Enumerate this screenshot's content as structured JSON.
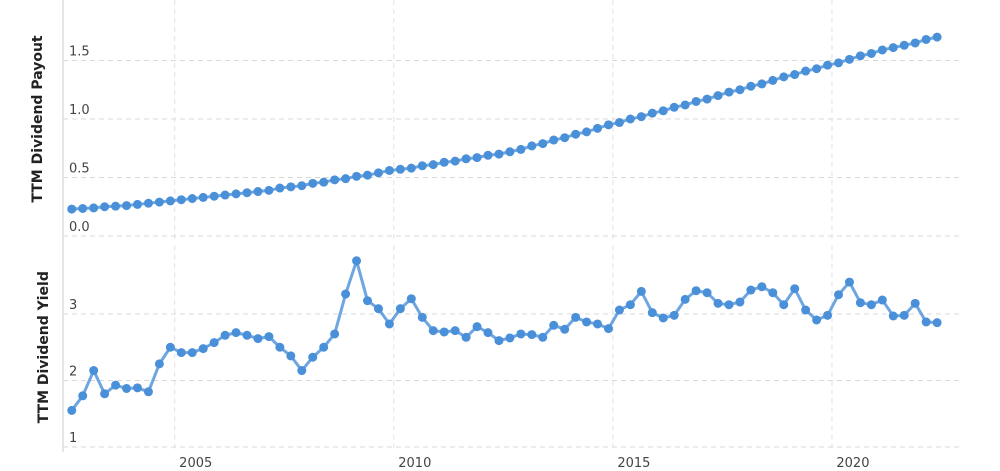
{
  "chart_data": [
    {
      "type": "line",
      "ylabel": "TTM Dividend Payout",
      "x": [
        2002.65,
        2002.9,
        2003.15,
        2003.4,
        2003.65,
        2003.9,
        2004.15,
        2004.4,
        2004.65,
        2004.9,
        2005.15,
        2005.4,
        2005.65,
        2005.9,
        2006.15,
        2006.4,
        2006.65,
        2006.9,
        2007.15,
        2007.4,
        2007.65,
        2007.9,
        2008.15,
        2008.4,
        2008.65,
        2008.9,
        2009.15,
        2009.4,
        2009.65,
        2009.9,
        2010.15,
        2010.4,
        2010.65,
        2010.9,
        2011.15,
        2011.4,
        2011.65,
        2011.9,
        2012.15,
        2012.4,
        2012.65,
        2012.9,
        2013.15,
        2013.4,
        2013.65,
        2013.9,
        2014.15,
        2014.4,
        2014.65,
        2014.9,
        2015.15,
        2015.4,
        2015.65,
        2015.9,
        2016.15,
        2016.4,
        2016.65,
        2016.9,
        2017.15,
        2017.4,
        2017.65,
        2017.9,
        2018.15,
        2018.4,
        2018.65,
        2018.9,
        2019.15,
        2019.4,
        2019.65,
        2019.9,
        2020.15,
        2020.4,
        2020.65,
        2020.9,
        2021.15,
        2021.4,
        2021.65,
        2021.9,
        2022.15,
        2022.4
      ],
      "series": [
        {
          "color": "#4a90d9",
          "values": [
            0.23,
            0.235,
            0.24,
            0.25,
            0.255,
            0.26,
            0.27,
            0.28,
            0.29,
            0.3,
            0.31,
            0.32,
            0.33,
            0.34,
            0.35,
            0.36,
            0.37,
            0.38,
            0.39,
            0.41,
            0.42,
            0.43,
            0.45,
            0.46,
            0.48,
            0.49,
            0.51,
            0.52,
            0.54,
            0.56,
            0.57,
            0.58,
            0.6,
            0.61,
            0.63,
            0.64,
            0.66,
            0.67,
            0.69,
            0.7,
            0.72,
            0.74,
            0.77,
            0.79,
            0.82,
            0.84,
            0.87,
            0.89,
            0.92,
            0.95,
            0.97,
            1.0,
            1.02,
            1.05,
            1.07,
            1.1,
            1.12,
            1.15,
            1.17,
            1.2,
            1.23,
            1.25,
            1.28,
            1.3,
            1.33,
            1.36,
            1.38,
            1.41,
            1.43,
            1.46,
            1.48,
            1.51,
            1.54,
            1.56,
            1.59,
            1.61,
            1.63,
            1.65,
            1.68,
            1.7
          ]
        }
      ],
      "xlim": [
        2002.45,
        2022.9
      ],
      "xticks": [
        2005,
        2010,
        2015,
        2020
      ],
      "ylim": [
        0,
        2
      ],
      "yticks": [
        {
          "value": 0,
          "label": "0.0"
        },
        0.5,
        {
          "value": 1,
          "label": "1.0"
        },
        1.5
      ],
      "grid": true
    },
    {
      "type": "line",
      "ylabel": "TTM Dividend Yield",
      "x": [
        2002.65,
        2002.9,
        2003.15,
        2003.4,
        2003.65,
        2003.9,
        2004.15,
        2004.4,
        2004.65,
        2004.9,
        2005.15,
        2005.4,
        2005.65,
        2005.9,
        2006.15,
        2006.4,
        2006.65,
        2006.9,
        2007.15,
        2007.4,
        2007.65,
        2007.9,
        2008.15,
        2008.4,
        2008.65,
        2008.9,
        2009.15,
        2009.4,
        2009.65,
        2009.9,
        2010.15,
        2010.4,
        2010.65,
        2010.9,
        2011.15,
        2011.4,
        2011.65,
        2011.9,
        2012.15,
        2012.4,
        2012.65,
        2012.9,
        2013.15,
        2013.4,
        2013.65,
        2013.9,
        2014.15,
        2014.4,
        2014.65,
        2014.9,
        2015.15,
        2015.4,
        2015.65,
        2015.9,
        2016.15,
        2016.4,
        2016.65,
        2016.9,
        2017.15,
        2017.4,
        2017.65,
        2017.9,
        2018.15,
        2018.4,
        2018.65,
        2018.9,
        2019.15,
        2019.4,
        2019.65,
        2019.9,
        2020.15,
        2020.4,
        2020.65,
        2020.9,
        2021.15,
        2021.4,
        2021.65,
        2021.9,
        2022.15,
        2022.4
      ],
      "series": [
        {
          "color": "#4a90d9",
          "values": [
            1.55,
            1.77,
            2.15,
            1.8,
            1.93,
            1.88,
            1.89,
            1.83,
            2.25,
            2.5,
            2.42,
            2.42,
            2.48,
            2.57,
            2.68,
            2.72,
            2.68,
            2.63,
            2.66,
            2.5,
            2.37,
            2.15,
            2.35,
            2.5,
            2.7,
            3.3,
            3.8,
            3.2,
            3.08,
            2.85,
            3.08,
            3.23,
            2.95,
            2.75,
            2.73,
            2.75,
            2.65,
            2.81,
            2.72,
            2.6,
            2.64,
            2.7,
            2.69,
            2.65,
            2.83,
            2.77,
            2.95,
            2.88,
            2.85,
            2.78,
            3.06,
            3.14,
            3.34,
            3.02,
            2.94,
            2.98,
            3.22,
            3.35,
            3.32,
            3.16,
            3.14,
            3.18,
            3.36,
            3.41,
            3.32,
            3.14,
            3.38,
            3.06,
            2.91,
            2.98,
            3.29,
            3.48,
            3.17,
            3.14,
            3.21,
            2.97,
            2.98,
            3.16,
            2.88,
            2.87
          ]
        }
      ],
      "xlim": [
        2002.45,
        2022.9
      ],
      "xticks": [
        2005,
        2010,
        2015,
        2020
      ],
      "ylim": [
        1,
        4
      ],
      "yticks": [
        1,
        2,
        3
      ],
      "grid": true
    }
  ]
}
